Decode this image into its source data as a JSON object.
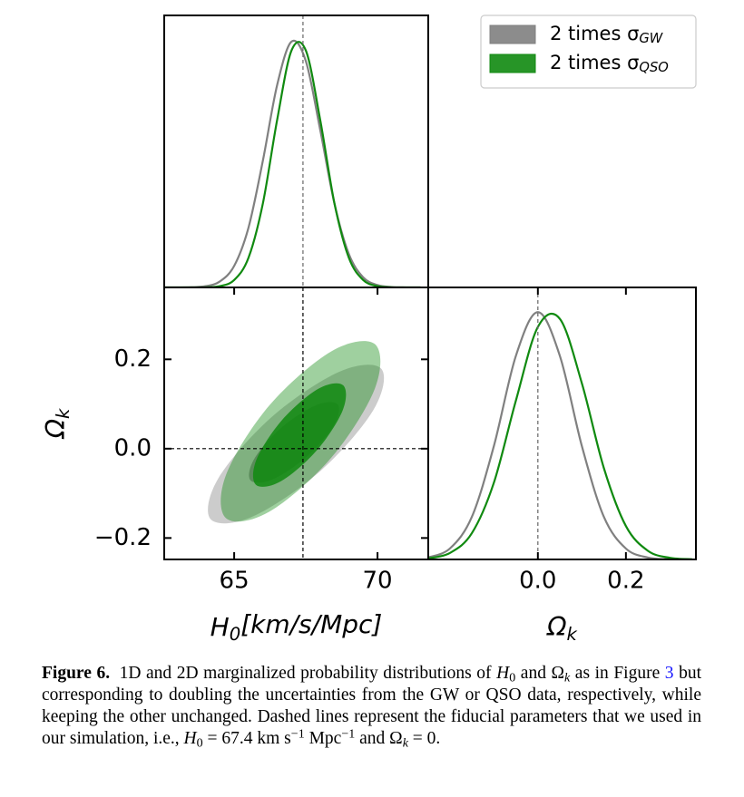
{
  "chart_data": [
    {
      "type": "line",
      "x": [
        62.5,
        63,
        63.5,
        64,
        64.5,
        65,
        65.5,
        66,
        66.5,
        67,
        67.5,
        68,
        68.5,
        69,
        69.5,
        70,
        70.5,
        71,
        71.5
      ],
      "series": [
        {
          "name": "2 times σ",
          "name_subscript": "GW",
          "color": "#808080",
          "values": [
            0,
            0.0001,
            0.0008,
            0.005,
            0.024,
            0.087,
            0.242,
            0.512,
            0.819,
            0.994,
            0.915,
            0.638,
            0.338,
            0.135,
            0.041,
            0.0095,
            0.0017,
            0.0002,
            0
          ]
        },
        {
          "name": "2 times σ",
          "name_subscript": "QSO",
          "color": "#108a10",
          "values": [
            0,
            0,
            0.0001,
            0.0007,
            0.0053,
            0.03,
            0.12,
            0.339,
            0.678,
            0.958,
            0.958,
            0.678,
            0.339,
            0.12,
            0.03,
            0.0053,
            0.0007,
            0.0001,
            0
          ]
        }
      ],
      "xlim": [
        62.56,
        71.77
      ],
      "ylim": [
        0,
        1.1
      ],
      "truth_x": 67.4,
      "legend": "upper right"
    },
    {
      "type": "contour",
      "series": [
        {
          "color": "#808080",
          "levels": [
            {
              "x": [
                70.13,
                69.85,
                67.99,
                65.64,
                64.18,
                64.45,
                66.31,
                68.66
              ],
              "y": [
                0.179,
                0.086,
                -0.051,
                -0.152,
                -0.158,
                -0.066,
                0.071,
                0.172
              ]
            },
            {
              "x": [
                68.61,
                68.47,
                67.53,
                66.33,
                65.57,
                65.7,
                66.65,
                67.85
              ],
              "y": [
                0.099,
                0.052,
                -0.018,
                -0.069,
                -0.071,
                -0.023,
                0.047,
                0.097
              ]
            }
          ]
        },
        {
          "color": "#108a10",
          "levels": [
            {
              "x": [
                69.91,
                69.91,
                68.39,
                66.23,
                64.72,
                64.72,
                66.23,
                68.39
              ],
              "y": [
                0.234,
                0.135,
                -0.02,
                -0.141,
                -0.156,
                -0.058,
                0.097,
                0.218
              ]
            },
            {
              "x": [
                68.8,
                68.78,
                67.88,
                66.63,
                65.76,
                65.78,
                66.68,
                67.93
              ],
              "y": [
                0.142,
                0.085,
                -0.004,
                -0.073,
                -0.081,
                -0.024,
                0.065,
                0.134
              ]
            }
          ]
        }
      ],
      "level_opacity": [
        0.4,
        0.85
      ],
      "xlim": [
        62.56,
        71.77
      ],
      "ylim": [
        -0.248,
        0.361
      ],
      "xticks": [
        65,
        70
      ],
      "yticks": [
        {
          "value": -0.2,
          "label": "−0.2"
        },
        {
          "value": 0,
          "label": "0.0"
        },
        0.2
      ],
      "xlabel": {
        "text": "H",
        "sub": "0",
        "rest": "[km/s/Mpc]"
      },
      "ylabel": {
        "text": "Ω",
        "sub": "k"
      },
      "truth_x": 67.4,
      "truth_y": 0
    },
    {
      "type": "line",
      "x": [
        -0.25,
        -0.2,
        -0.15,
        -0.1,
        -0.05,
        0,
        0.05,
        0.1,
        0.15,
        0.2,
        0.25,
        0.3,
        0.35
      ],
      "series": [
        {
          "color": "#808080",
          "values": [
            0.0076,
            0.044,
            0.172,
            0.458,
            0.823,
            1,
            0.823,
            0.458,
            0.172,
            0.044,
            0.0076,
            0.0009,
            0.0001
          ]
        },
        {
          "color": "#108a10",
          "values": [
            0.0044,
            0.026,
            0.106,
            0.31,
            0.642,
            0.94,
            0.973,
            0.712,
            0.369,
            0.135,
            0.035,
            0.0064,
            0.0008
          ]
        }
      ],
      "xlim": [
        -0.249,
        0.359
      ],
      "ylim": [
        0,
        1.1
      ],
      "xticks": [
        {
          "value": 0,
          "label": "0.0"
        },
        0.2
      ],
      "xlabel": {
        "text": "Ω",
        "sub": "k"
      },
      "truth_x": 0
    }
  ],
  "caption": {
    "label": "Figure 6.",
    "segments": [
      {
        "text": "1D and 2D marginalized probability distributions of "
      },
      {
        "text": "H",
        "style": "i"
      },
      {
        "text": "0",
        "style": "sub"
      },
      {
        "text": " and Ω"
      },
      {
        "text": "k",
        "style": "sub i"
      },
      {
        "text": " as in Figure "
      },
      {
        "text": "3",
        "style": "link"
      },
      {
        "text": " but corresponding to doubling the uncertainties from the GW or QSO data, respectively, while keeping the other unchanged. Dashed lines represent the fiducial parameters that we used in our simulation, i.e., "
      },
      {
        "text": "H",
        "style": "i"
      },
      {
        "text": "0",
        "style": "sub"
      },
      {
        "text": " = 67.4 km s"
      },
      {
        "text": "−1",
        "style": "sup"
      },
      {
        "text": " Mpc"
      },
      {
        "text": "−1",
        "style": "sup"
      },
      {
        "text": " and Ω"
      },
      {
        "text": "k",
        "style": "sub i"
      },
      {
        "text": " = 0."
      }
    ]
  }
}
